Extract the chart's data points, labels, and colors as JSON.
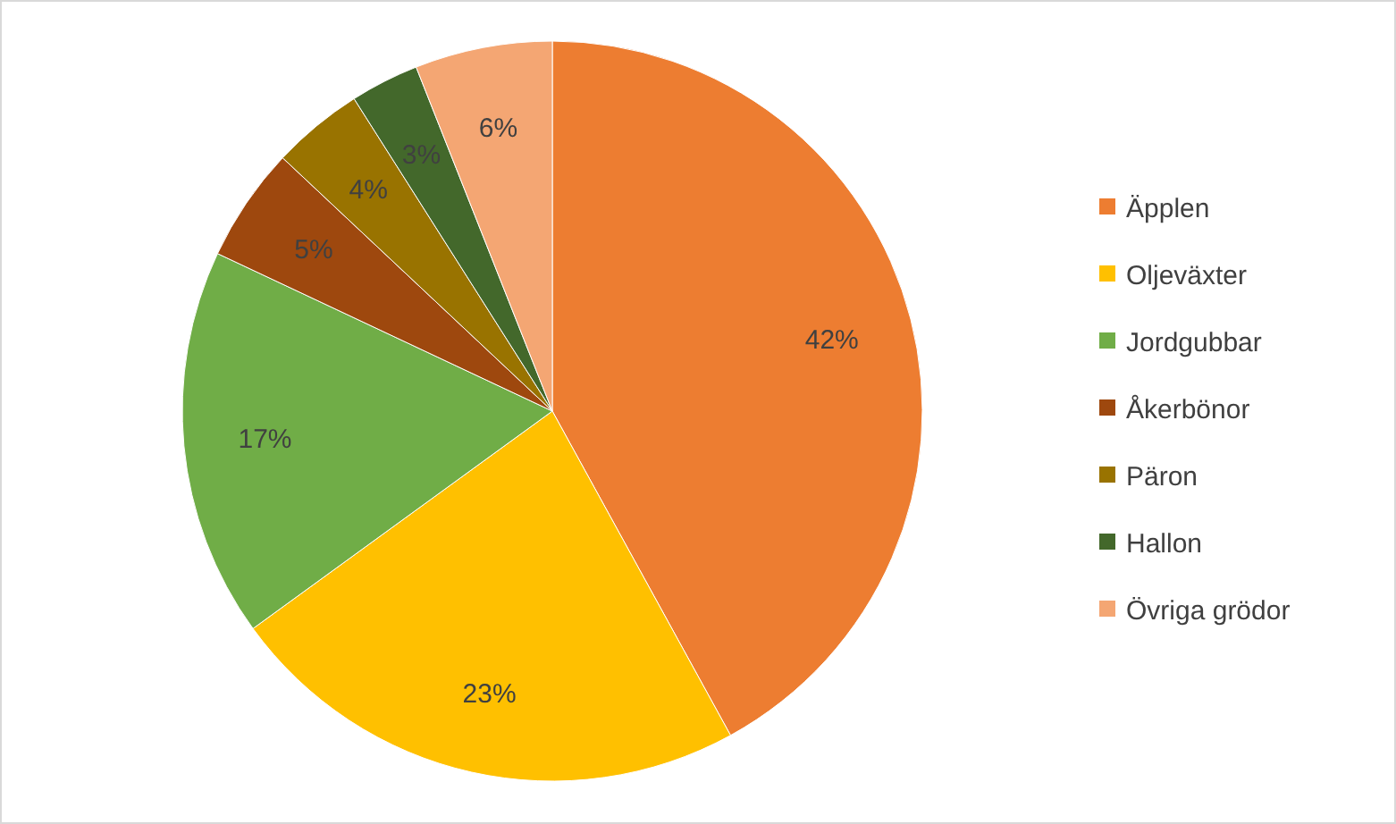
{
  "chart_data": {
    "type": "pie",
    "categories": [
      "Äpplen",
      "Oljeväxter",
      "Jordgubbar",
      "Åkerbönor",
      "Päron",
      "Hallon",
      "Övriga grödor"
    ],
    "values": [
      42,
      23,
      17,
      5,
      4,
      3,
      6
    ],
    "colors": [
      "#ed7d31",
      "#ffc000",
      "#70ad47",
      "#9e480e",
      "#997300",
      "#43682b",
      "#f4a673"
    ],
    "value_labels": [
      "42%",
      "23%",
      "17%",
      "5%",
      "4%",
      "3%",
      "6%"
    ],
    "legend": "right"
  }
}
